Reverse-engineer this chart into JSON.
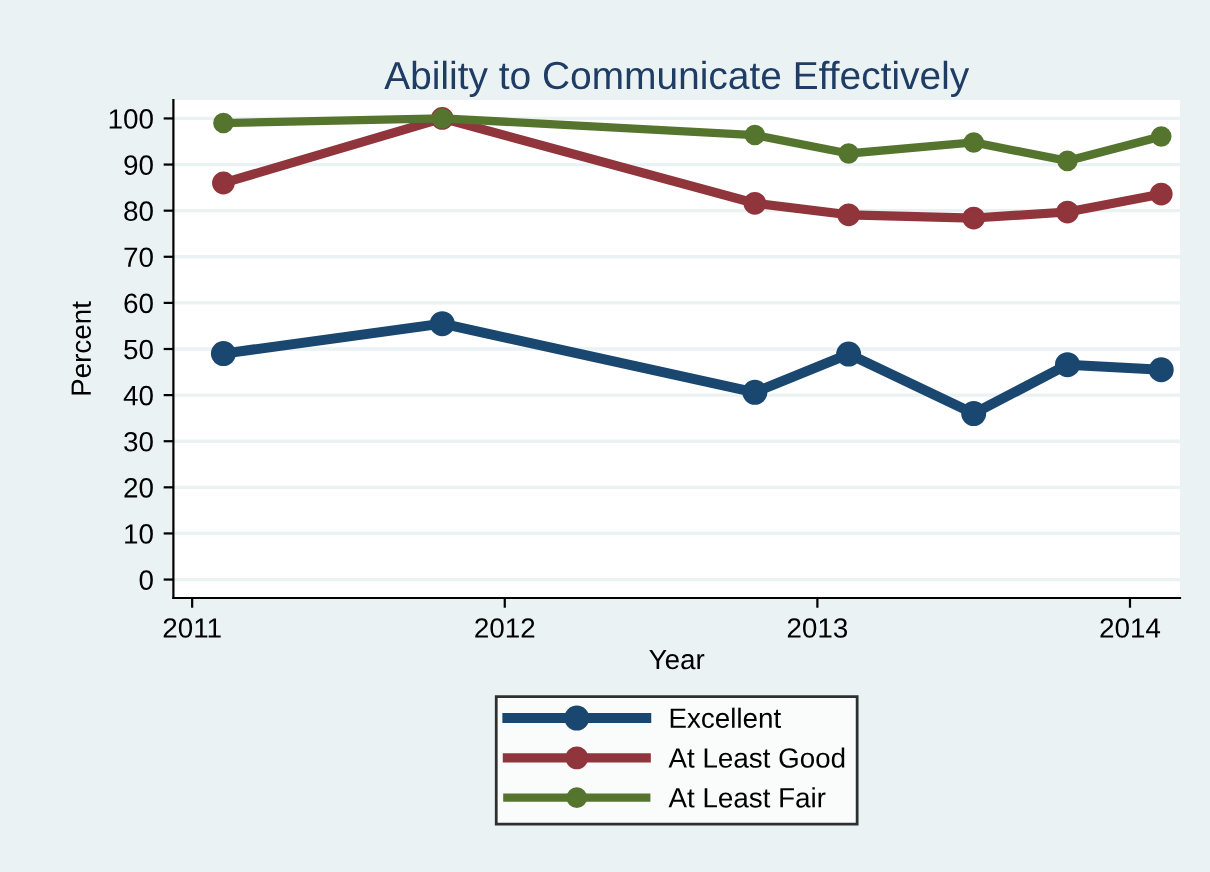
{
  "chart_data": {
    "type": "line",
    "title": "Ability to Communicate Effectively",
    "xlabel": "Year",
    "ylabel": "Percent",
    "x": [
      2011.1,
      2011.8,
      2012.8,
      2013.1,
      2013.5,
      2013.8,
      2014.1
    ],
    "series": [
      {
        "name": "Excellent",
        "color": "#1a476f",
        "values": [
          49,
          55.5,
          40.6,
          48.9,
          36,
          46.6,
          45.5
        ]
      },
      {
        "name": "At Least Good",
        "color": "#90353b",
        "values": [
          86,
          100,
          81.6,
          79.1,
          78.4,
          79.7,
          83.6
        ]
      },
      {
        "name": "At Least Fair",
        "color": "#55752f",
        "values": [
          99,
          100,
          96.4,
          92.4,
          94.8,
          90.8,
          96.1
        ]
      }
    ],
    "xlim": [
      2010.94,
      2014.16
    ],
    "xticks": [
      2011,
      2012,
      2013,
      2014
    ],
    "ylim": [
      -4,
      104
    ],
    "yticks": [
      0,
      10,
      20,
      30,
      40,
      50,
      60,
      70,
      80,
      90,
      100
    ],
    "grid": "y",
    "legend": "bottom",
    "marker": "circle",
    "line_style": "solid"
  }
}
